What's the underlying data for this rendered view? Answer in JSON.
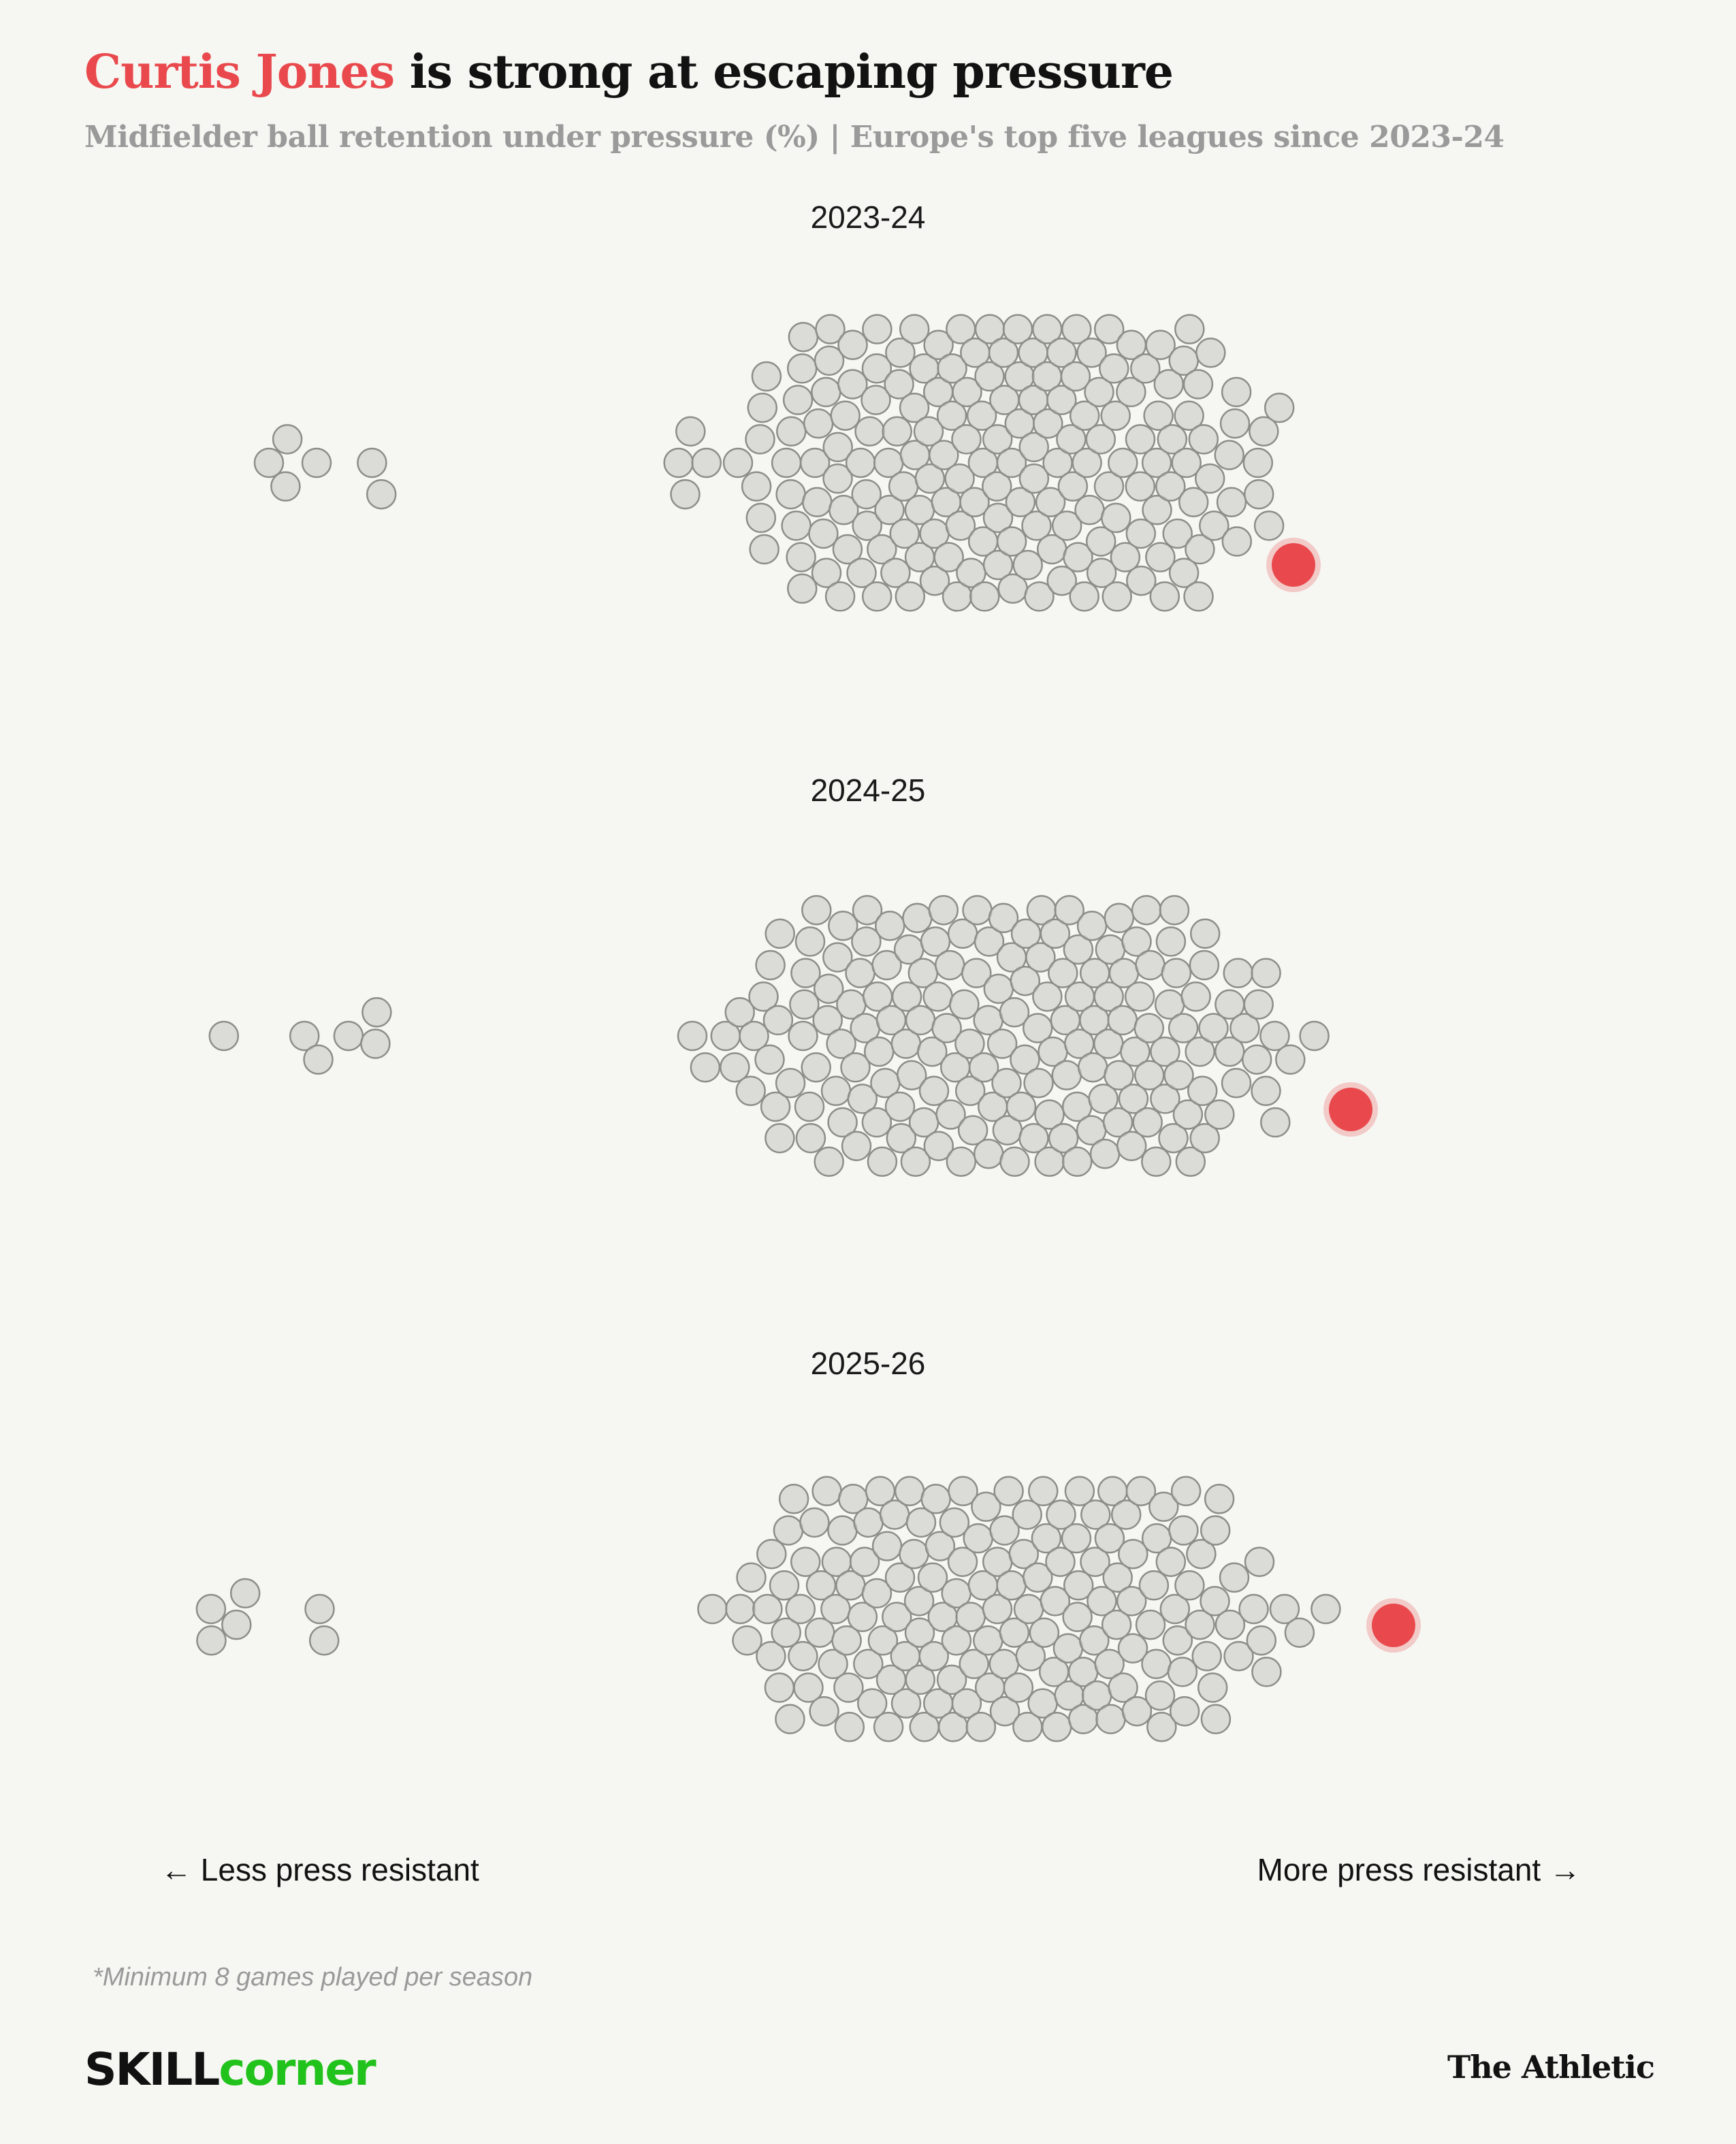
{
  "title": {
    "highlight": "Curtis Jones",
    "rest": " is strong at escaping pressure"
  },
  "subtitle": "Midfielder ball retention under pressure (%) | Europe's top five leagues since 2023-24",
  "colors": {
    "background": "#f6f6f2",
    "highlight": "#e9494d",
    "dot_fill": "#c9c9c6",
    "dot_stroke": "#8d8d8a"
  },
  "chart_data": {
    "type": "scatter",
    "variant": "beeswarm",
    "measure": "Midfielder ball retention under pressure (%)",
    "highlighted_player": "Curtis Jones",
    "panels": [
      {
        "season": "2023-24",
        "highlight_position_fraction": 0.8
      },
      {
        "season": "2024-25",
        "highlight_position_fraction": 0.84
      },
      {
        "season": "2025-26",
        "highlight_position_fraction": 0.87
      }
    ],
    "x_direction": {
      "low": "Less press resistant",
      "high": "More press resistant"
    }
  },
  "axis_notes": {
    "left": "← Less press resistant",
    "right": "More press resistant →"
  },
  "footnote": "*Minimum 8 games played per season",
  "logos": {
    "skillcorner_part1": "SKILL",
    "skillcorner_part2": "corner",
    "athletic": "The Athletic"
  }
}
